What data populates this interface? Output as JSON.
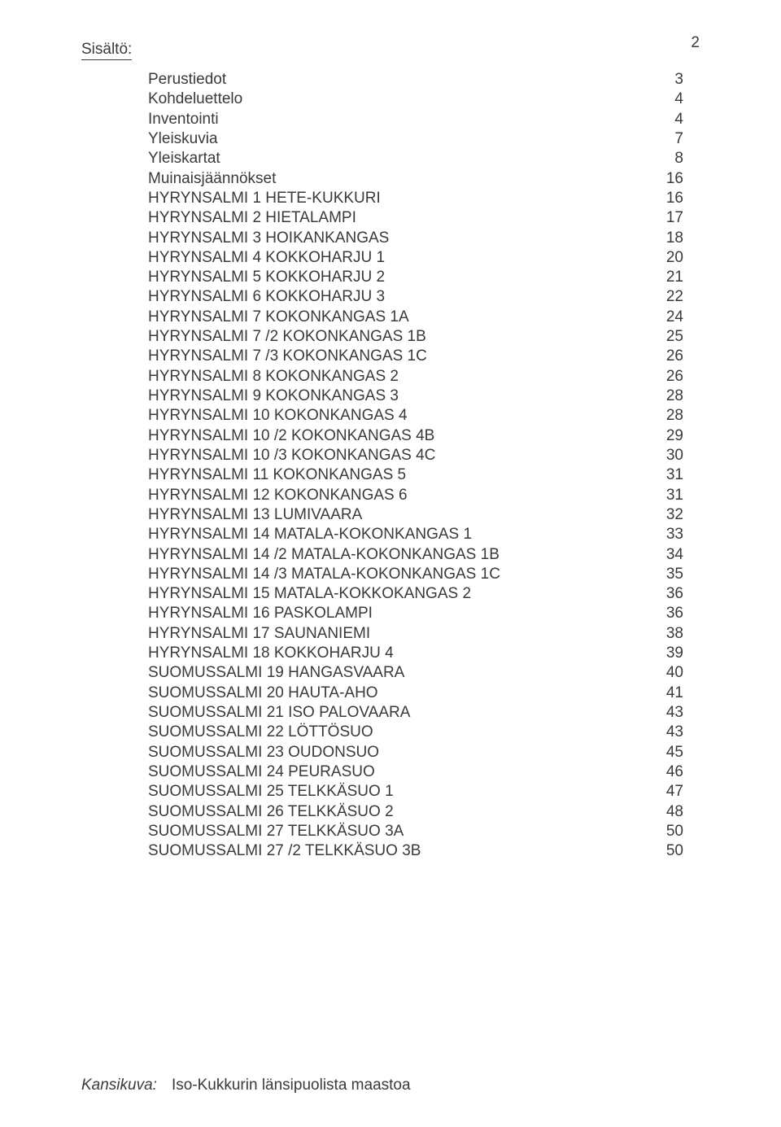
{
  "page_number": "2",
  "title": "Sisältö:",
  "toc": [
    {
      "label": "Perustiedot",
      "page": "3"
    },
    {
      "label": "Kohdeluettelo",
      "page": "4"
    },
    {
      "label": "Inventointi",
      "page": "4"
    },
    {
      "label": "Yleiskuvia",
      "page": "7"
    },
    {
      "label": "Yleiskartat",
      "page": "8"
    },
    {
      "label": "Muinaisjäännökset",
      "page": "16"
    },
    {
      "label": "HYRYNSALMI 1 HETE-KUKKURI",
      "page": "16"
    },
    {
      "label": "HYRYNSALMI 2 HIETALAMPI",
      "page": "17"
    },
    {
      "label": "HYRYNSALMI 3 HOIKANKANGAS",
      "page": "18"
    },
    {
      "label": "HYRYNSALMI 4 KOKKOHARJU 1",
      "page": "20"
    },
    {
      "label": "HYRYNSALMI 5 KOKKOHARJU 2",
      "page": "21"
    },
    {
      "label": "HYRYNSALMI 6 KOKKOHARJU 3",
      "page": "22"
    },
    {
      "label": "HYRYNSALMI 7 KOKONKANGAS 1A",
      "page": "24"
    },
    {
      "label": "HYRYNSALMI 7 /2 KOKONKANGAS 1B",
      "page": "25"
    },
    {
      "label": "HYRYNSALMI 7 /3 KOKONKANGAS 1C",
      "page": "26"
    },
    {
      "label": "HYRYNSALMI 8 KOKONKANGAS 2",
      "page": "26"
    },
    {
      "label": "HYRYNSALMI 9 KOKONKANGAS 3",
      "page": "28"
    },
    {
      "label": "HYRYNSALMI 10 KOKONKANGAS 4",
      "page": "28"
    },
    {
      "label": "HYRYNSALMI 10 /2 KOKONKANGAS 4B",
      "page": "29"
    },
    {
      "label": "HYRYNSALMI 10 /3 KOKONKANGAS 4C",
      "page": "30"
    },
    {
      "label": "HYRYNSALMI 11 KOKONKANGAS 5",
      "page": "31"
    },
    {
      "label": "HYRYNSALMI 12 KOKONKANGAS 6",
      "page": "31"
    },
    {
      "label": "HYRYNSALMI 13 LUMIVAARA",
      "page": "32"
    },
    {
      "label": "HYRYNSALMI 14 MATALA-KOKONKANGAS 1",
      "page": "33"
    },
    {
      "label": "HYRYNSALMI 14 /2 MATALA-KOKONKANGAS 1B",
      "page": "34"
    },
    {
      "label": "HYRYNSALMI 14 /3 MATALA-KOKONKANGAS 1C",
      "page": "35"
    },
    {
      "label": "HYRYNSALMI 15 MATALA-KOKKOKANGAS 2",
      "page": "36"
    },
    {
      "label": "HYRYNSALMI 16 PASKOLAMPI",
      "page": "36"
    },
    {
      "label": "HYRYNSALMI 17 SAUNANIEMI",
      "page": "38"
    },
    {
      "label": "HYRYNSALMI 18 KOKKOHARJU 4",
      "page": "39"
    },
    {
      "label": "SUOMUSSALMI 19 HANGASVAARA",
      "page": "40"
    },
    {
      "label": "SUOMUSSALMI 20 HAUTA-AHO",
      "page": "41"
    },
    {
      "label": "SUOMUSSALMI 21 ISO PALOVAARA",
      "page": "43"
    },
    {
      "label": "SUOMUSSALMI 22 LÖTTÖSUO",
      "page": "43"
    },
    {
      "label": "SUOMUSSALMI 23 OUDONSUO",
      "page": "45"
    },
    {
      "label": "SUOMUSSALMI 24 PEURASUO",
      "page": "46"
    },
    {
      "label": "SUOMUSSALMI 25 TELKKÄSUO 1",
      "page": "47"
    },
    {
      "label": "SUOMUSSALMI 26 TELKKÄSUO 2",
      "page": "48"
    },
    {
      "label": "SUOMUSSALMI 27 TELKKÄSUO 3A",
      "page": "50"
    },
    {
      "label": "SUOMUSSALMI 27 /2 TELKKÄSUO 3B",
      "page": "50"
    }
  ],
  "footer": {
    "label": "Kansikuva:",
    "text": "Iso-Kukkurin länsipuolista maastoa"
  }
}
